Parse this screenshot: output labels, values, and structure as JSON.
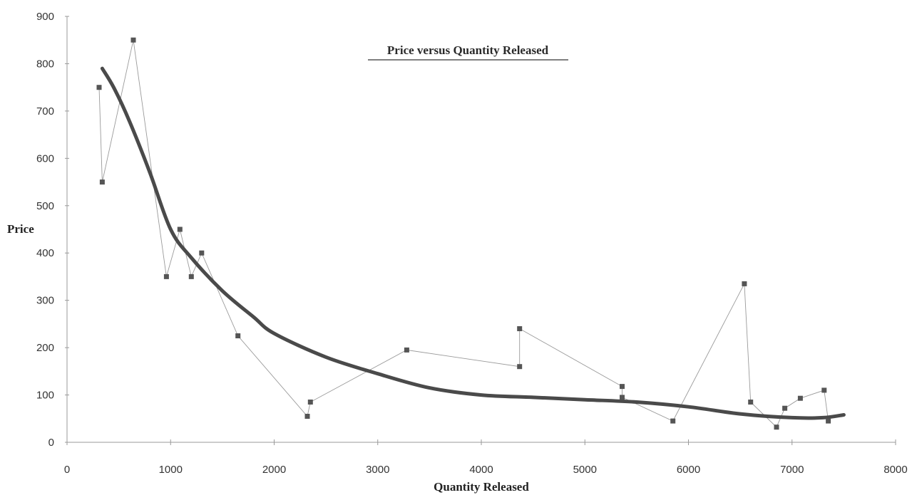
{
  "chart_data": {
    "type": "scatter",
    "title": "Price versus Quantity Released",
    "xlabel": "Quantity Released",
    "ylabel": "Price",
    "xlim": [
      0,
      8000
    ],
    "ylim": [
      0,
      900
    ],
    "x_ticks": [
      "0",
      "1000",
      "2000",
      "3000",
      "4000",
      "5000",
      "6000",
      "7000",
      "8000"
    ],
    "y_ticks": [
      "0",
      "100",
      "200",
      "300",
      "400",
      "500",
      "600",
      "700",
      "800",
      "900"
    ],
    "grid": false,
    "legend": "none",
    "series": [
      {
        "kind": "connected-markers",
        "color": "#555555",
        "points": [
          [
            310,
            750
          ],
          [
            340,
            550
          ],
          [
            640,
            850
          ],
          [
            960,
            350
          ],
          [
            1090,
            450
          ],
          [
            1200,
            350
          ],
          [
            1300,
            400
          ],
          [
            1650,
            225
          ],
          [
            2320,
            55
          ],
          [
            2350,
            85
          ],
          [
            3280,
            195
          ],
          [
            4370,
            160
          ],
          [
            4370,
            240
          ],
          [
            5360,
            118
          ],
          [
            5360,
            95
          ],
          [
            5850,
            45
          ],
          [
            6540,
            335
          ],
          [
            6600,
            85
          ],
          [
            6850,
            32
          ],
          [
            6930,
            72
          ],
          [
            7080,
            93
          ],
          [
            7310,
            110
          ],
          [
            7350,
            45
          ]
        ]
      },
      {
        "kind": "trendline",
        "color": "#4a4a4a",
        "points": [
          [
            340,
            790
          ],
          [
            450,
            750
          ],
          [
            600,
            680
          ],
          [
            800,
            570
          ],
          [
            1000,
            450
          ],
          [
            1200,
            390
          ],
          [
            1500,
            320
          ],
          [
            1800,
            265
          ],
          [
            2000,
            230
          ],
          [
            2500,
            180
          ],
          [
            3000,
            145
          ],
          [
            3500,
            115
          ],
          [
            4000,
            100
          ],
          [
            4500,
            95
          ],
          [
            5000,
            90
          ],
          [
            5500,
            85
          ],
          [
            6000,
            75
          ],
          [
            6500,
            60
          ],
          [
            7000,
            52
          ],
          [
            7300,
            52
          ],
          [
            7500,
            58
          ]
        ]
      }
    ]
  }
}
